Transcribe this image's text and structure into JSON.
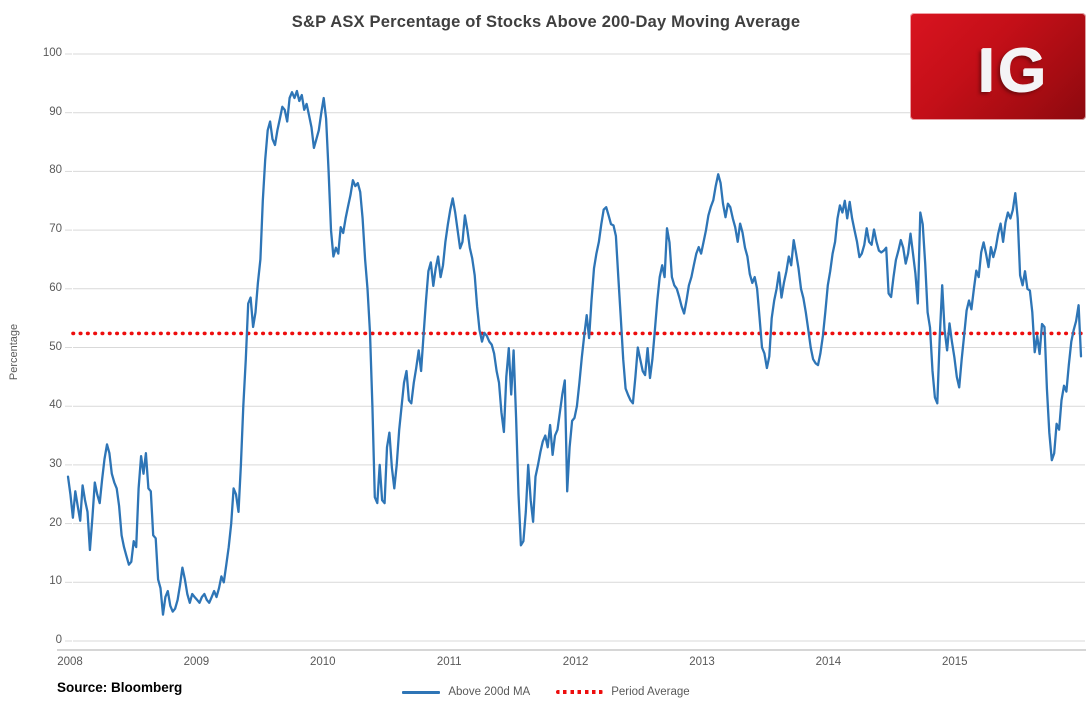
{
  "source_note": "Source: Bloomberg",
  "logo": {
    "text": "IG",
    "background_color": "#c40f18"
  },
  "chart_data": {
    "type": "line",
    "title": "S&P ASX  Percentage of Stocks Above 200-Day Moving Average",
    "xlabel": "",
    "ylabel": "Percentage",
    "ylim": [
      0,
      100
    ],
    "ytick_interval": 10,
    "yticks": [
      0,
      10,
      20,
      30,
      40,
      50,
      60,
      70,
      80,
      90,
      100
    ],
    "xticks": [
      "2008",
      "2009",
      "2010",
      "2011",
      "2012",
      "2013",
      "2014",
      "2015"
    ],
    "x_range": "Jan 2008 to Dec 2015, weekly",
    "grid": "horizontal",
    "legend_position": "bottom-center",
    "legend": [
      {
        "label": "Above 200d MA",
        "style": "solid",
        "color": "#2E75B6"
      },
      {
        "label": "Period Average",
        "style": "dotted",
        "color": "#ED0D0D"
      }
    ],
    "series": [
      {
        "name": "Above 200d MA",
        "color": "#2E75B6",
        "points_per_year": 52,
        "values": [
          28,
          25,
          21,
          25.5,
          23,
          20.5,
          26.5,
          24,
          22,
          15.5,
          21,
          27,
          25,
          23.5,
          27.5,
          31,
          33.5,
          32,
          28.5,
          27,
          26,
          23,
          18,
          16,
          14.5,
          13,
          13.5,
          17,
          16,
          26,
          31.5,
          28.5,
          32,
          26,
          25.5,
          18,
          17.5,
          10.5,
          9,
          4.5,
          7.5,
          8.5,
          6,
          5,
          5.5,
          7,
          9.5,
          12.5,
          10.5,
          8,
          6.5,
          8,
          7.5,
          7,
          6.5,
          7.5,
          8,
          7,
          6.5,
          7.5,
          8.5,
          7.5,
          9,
          11,
          10,
          13,
          16,
          20,
          26,
          25,
          22,
          30,
          40,
          48,
          57.5,
          58.5,
          53.5,
          56,
          61,
          65,
          75,
          82,
          87,
          88.5,
          85.5,
          84.5,
          87,
          89,
          91,
          90.5,
          88.5,
          92.5,
          93.5,
          92.5,
          93.7,
          92,
          93,
          90.5,
          91.5,
          89.5,
          87.5,
          84,
          85.5,
          87,
          90,
          92.5,
          89,
          80,
          70,
          65.5,
          67,
          66,
          70.5,
          69.5,
          72,
          74,
          76,
          78.5,
          77.5,
          78,
          76.5,
          72,
          65,
          60,
          52.5,
          40,
          24.5,
          23.5,
          30,
          24,
          23.5,
          33,
          35.5,
          29.5,
          26,
          30,
          36,
          40,
          44,
          46,
          41,
          40.5,
          44,
          46.5,
          49.5,
          46,
          52,
          58,
          63,
          64.5,
          60.5,
          63.5,
          65.5,
          62,
          64,
          68,
          71,
          73.5,
          75.4,
          73,
          70,
          66.9,
          68,
          72.5,
          70,
          67,
          65.2,
          62.3,
          57,
          53,
          51,
          52.5,
          52,
          51,
          50.5,
          49,
          46,
          44,
          39,
          35.6,
          45,
          49.9,
          42,
          49.5,
          38,
          25,
          16.3,
          17,
          22,
          30,
          24,
          20.3,
          28,
          30,
          32.2,
          34,
          35,
          33,
          36.8,
          31.7,
          35,
          36,
          39,
          42,
          44.4,
          25.5,
          33,
          37.5,
          38,
          40,
          44,
          48.3,
          52,
          55.5,
          51.6,
          58,
          63.5,
          66,
          68,
          71,
          73.5,
          73.9,
          72.5,
          71,
          70.8,
          69,
          62,
          55,
          48,
          43,
          41.9,
          41,
          40.5,
          45,
          50,
          48,
          46,
          45.3,
          49.9,
          44.8,
          48,
          53,
          58,
          62,
          64,
          62,
          70.3,
          67.9,
          62,
          60.6,
          60,
          58.6,
          57,
          55.8,
          58,
          60.6,
          62,
          64,
          66,
          67.1,
          66,
          68,
          70,
          72.5,
          74,
          75.1,
          77.5,
          79.5,
          78,
          74.5,
          72.2,
          74.5,
          73.9,
          72,
          70.5,
          68,
          71.1,
          69.6,
          67,
          65.5,
          62.5,
          61,
          62,
          60,
          55,
          50,
          49,
          46.5,
          48.5,
          55,
          58,
          60,
          62.8,
          58.5,
          61,
          63,
          65.5,
          64,
          68.3,
          66,
          63.5,
          60,
          58.4,
          56,
          53,
          50,
          48,
          47.3,
          47,
          49,
          52,
          56,
          60.6,
          63,
          66,
          68,
          72,
          74.2,
          73,
          75,
          72,
          74.8,
          72,
          70,
          68,
          65.4,
          66,
          67.5,
          70.3,
          68,
          67.5,
          70.1,
          68,
          66.5,
          66.2,
          66.5,
          67,
          59.2,
          58.6,
          62,
          64.9,
          66.5,
          68.3,
          67,
          64.3,
          66,
          69.4,
          66,
          62.6,
          57.5,
          73,
          71,
          64.3,
          56,
          53.4,
          46,
          41.5,
          40.5,
          52,
          60.6,
          53,
          49.5,
          54.1,
          51,
          48.3,
          45,
          43.2,
          48,
          52,
          56.3,
          58,
          56.5,
          60,
          63.1,
          62,
          66.2,
          67.9,
          66,
          63.7,
          67.1,
          65.4,
          67,
          69.4,
          71.1,
          68,
          71.3,
          73,
          72,
          73.4,
          76.3,
          72,
          62.3,
          60.6,
          63,
          60,
          59.7,
          56,
          49.2,
          52,
          48.9,
          54,
          53.5,
          43,
          35.5,
          30.8,
          32,
          37,
          36,
          41,
          43.5,
          42.5,
          47,
          51,
          53,
          54.5,
          57.2,
          48.5
        ]
      },
      {
        "name": "Period Average",
        "color": "#ED0D0D",
        "style": "dotted",
        "value": 52.4
      }
    ]
  }
}
